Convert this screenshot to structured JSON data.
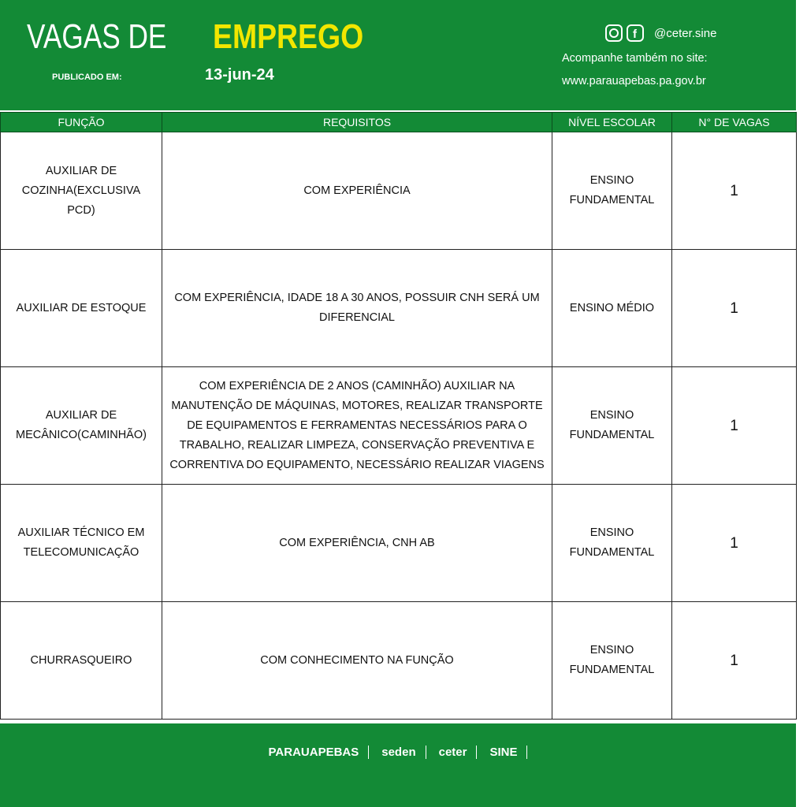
{
  "header": {
    "title_left": "VAGAS DE",
    "title_right": "EMPREGO",
    "published_label": "PUBLICADO EM:",
    "date": "13-jun-24",
    "social": "@ceter.sine",
    "site_note": "Acompanhe também no site:",
    "site": "www.parauapebas.pa.gov.br"
  },
  "table": {
    "columns": [
      "FUNÇÃO",
      "REQUISITOS",
      "NÍVEL ESCOLAR",
      "N° DE VAGAS"
    ],
    "rows": [
      [
        "AUXILIAR DE COZINHA(EXCLUSIVA PCD)",
        "COM EXPERIÊNCIA",
        "ENSINO FUNDAMENTAL",
        1
      ],
      [
        "AUXILIAR DE ESTOQUE",
        "COM EXPERIÊNCIA, IDADE 18 A 30 ANOS, POSSUIR CNH SERÁ UM DIFERENCIAL",
        "ENSINO MÉDIO",
        1
      ],
      [
        "AUXILIAR DE MECÂNICO(CAMINHÃO)",
        "COM EXPERIÊNCIA DE 2 ANOS (CAMINHÃO) AUXILIAR NA MANUTENÇÃO DE MÁQUINAS, MOTORES, REALIZAR TRANSPORTE DE EQUIPAMENTOS E FERRAMENTAS NECESSÁRIOS PARA O TRABALHO, REALIZAR LIMPEZA, CONSERVAÇÃO PREVENTIVA E CORRENTIVA DO EQUIPAMENTO, NECESSÁRIO REALIZAR VIAGENS",
        "ENSINO FUNDAMENTAL",
        1
      ],
      [
        "AUXILIAR TÉCNICO EM TELECOMUNICAÇÃO",
        "COM EXPERIÊNCIA, CNH AB",
        "ENSINO FUNDAMENTAL",
        1
      ],
      [
        "CHURRASQUEIRO",
        "COM CONHECIMENTO NA FUNÇÃO",
        "ENSINO FUNDAMENTAL",
        1
      ]
    ]
  },
  "footer": {
    "logos": [
      "PARAUAPEBAS",
      "seden",
      "ceter",
      "SINE"
    ]
  }
}
